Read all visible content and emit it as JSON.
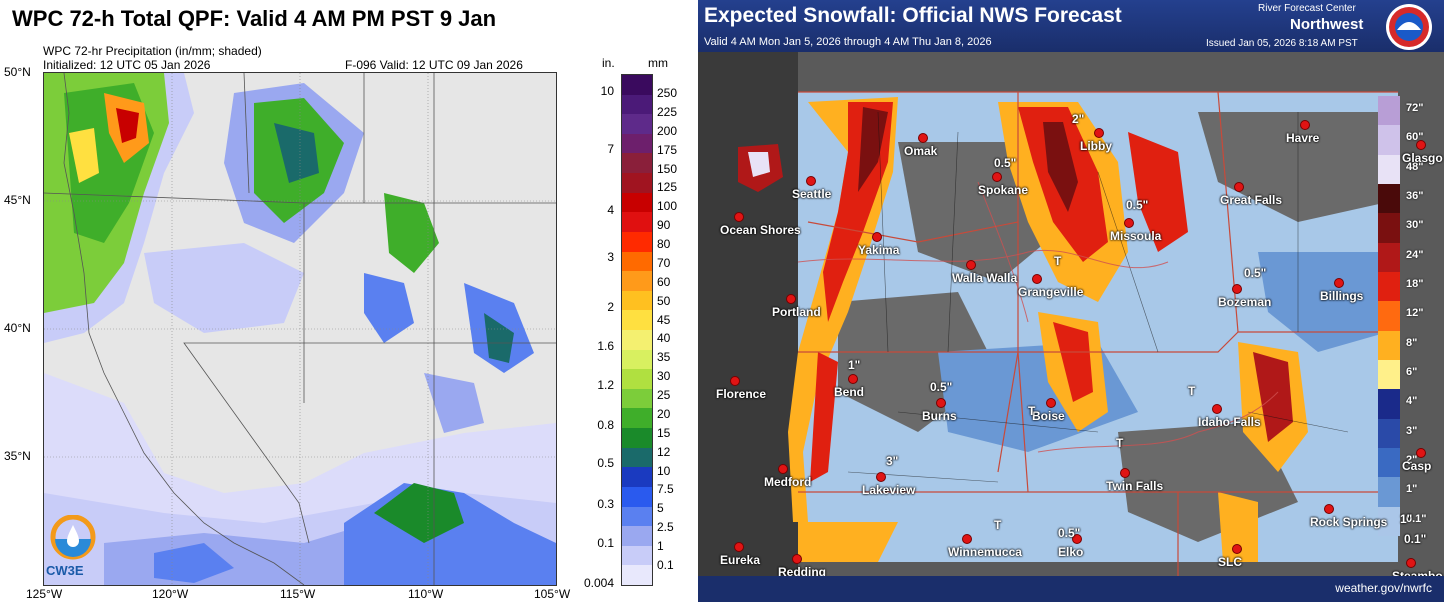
{
  "left_panel": {
    "title": "WPC 72-h Total QPF: Valid 4 AM PM PST 9 Jan",
    "subtitle": "WPC 72-hr Precipitation (in/mm; shaded)",
    "initialized": "Initialized: 12 UTC 05 Jan 2026",
    "forecast": "F-096   Valid: 12 UTC 09 Jan 2026",
    "lat_labels": [
      "50°N",
      "45°N",
      "40°N",
      "35°N"
    ],
    "lon_labels": [
      "125°W",
      "120°W",
      "115°W",
      "110°W",
      "105°W"
    ],
    "colorbar": {
      "unit_in": "in.",
      "unit_mm": "mm",
      "mm_levels": [
        "250",
        "225",
        "200",
        "175",
        "150",
        "125",
        "100",
        "90",
        "80",
        "70",
        "60",
        "50",
        "45",
        "40",
        "35",
        "30",
        "25",
        "20",
        "15",
        "12",
        "10",
        "7.5",
        "5",
        "2.5",
        "1",
        "0.1"
      ],
      "in_levels": [
        "10",
        "7",
        "4",
        "3",
        "2",
        "1.6",
        "1.2",
        "0.8",
        "0.5",
        "0.3",
        "0.1",
        "0.004"
      ],
      "colors": [
        "#3a0a5e",
        "#4b1a78",
        "#5e2a8a",
        "#6d1f6c",
        "#8a1f3a",
        "#a01420",
        "#c80000",
        "#e01010",
        "#ff2a00",
        "#ff6a00",
        "#ff9a1a",
        "#ffc020",
        "#ffe040",
        "#f4f070",
        "#d8f060",
        "#b0e040",
        "#7ccd3a",
        "#3fae2a",
        "#1a8a2a",
        "#1a6a6a",
        "#1a3ac0",
        "#2a5aee",
        "#5a80f0",
        "#9aa8f0",
        "#c8ccf8",
        "#e8e8fc"
      ]
    },
    "logo_text": "CW3E"
  },
  "right_panel": {
    "title": "Expected Snowfall: Official NWS Forecast",
    "valid": "Valid 4 AM Mon Jan 5, 2026 through 4 AM Thu Jan 8, 2026",
    "rfc_label": "River Forecast Center",
    "rfc_name": "Northwest",
    "issued": "Issued Jan 05, 2026 8:18 AM PST",
    "url": "weather.gov/nwrfc",
    "cities": [
      {
        "name": "Omak"
      },
      {
        "name": "Seattle"
      },
      {
        "name": "Ocean Shores"
      },
      {
        "name": "Yakima"
      },
      {
        "name": "Spokane"
      },
      {
        "name": "Libby"
      },
      {
        "name": "Havre"
      },
      {
        "name": "Great Falls"
      },
      {
        "name": "Missoula"
      },
      {
        "name": "Walla Walla"
      },
      {
        "name": "Grangeville"
      },
      {
        "name": "Bozeman"
      },
      {
        "name": "Billings"
      },
      {
        "name": "Portland"
      },
      {
        "name": "Bend"
      },
      {
        "name": "Florence"
      },
      {
        "name": "Burns"
      },
      {
        "name": "Boise"
      },
      {
        "name": "Idaho Falls"
      },
      {
        "name": "Twin Falls"
      },
      {
        "name": "Medford"
      },
      {
        "name": "Lakeview"
      },
      {
        "name": "Rock Springs"
      },
      {
        "name": "Winnemucca"
      },
      {
        "name": "Elko"
      },
      {
        "name": "SLC"
      },
      {
        "name": "Eureka"
      },
      {
        "name": "Redding"
      },
      {
        "name": "Glasgo"
      },
      {
        "name": "Casp"
      },
      {
        "name": "Steambo"
      }
    ],
    "amount_labels": [
      "2\"",
      "0.5\"",
      "0.5\"",
      "T",
      "0.5\"",
      "1\"",
      "0.5\"",
      "T",
      "T",
      "3\"",
      "T",
      "0.5\"",
      "T",
      "0.1\"",
      "1\""
    ],
    "legend_labels": [
      "72\"",
      "60\"",
      "48\"",
      "36\"",
      "30\"",
      "24\"",
      "18\"",
      "12\"",
      "8\"",
      "6\"",
      "4\"",
      "3\"",
      "2\"",
      "1\"",
      "0.1\""
    ],
    "legend_colors": [
      "#b89ed6",
      "#cfc2ea",
      "#e8e2f6",
      "#4a0a0a",
      "#7a1010",
      "#b01818",
      "#e02010",
      "#ff6a10",
      "#ffb020",
      "#fff08a",
      "#1a2a8a",
      "#2a4aa8",
      "#3a6ac2",
      "#6a98d4",
      "#aac6e8"
    ]
  }
}
